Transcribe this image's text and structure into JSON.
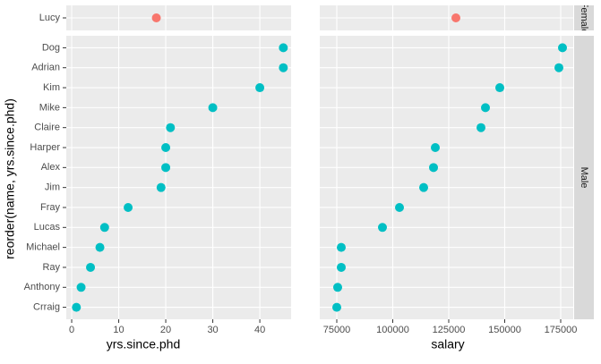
{
  "chart_data": {
    "type": "dot",
    "y_label": "reorder(name, yrs.since.phd)",
    "columns": [
      {
        "x_label": "yrs.since.phd",
        "xlim": [
          -1.15,
          46.65
        ],
        "xticks": [
          0,
          10,
          20,
          30,
          40
        ]
      },
      {
        "x_label": "salary",
        "xlim": [
          67400,
          180600
        ],
        "xticks": [
          75000,
          100000,
          125000,
          150000,
          175000
        ]
      }
    ],
    "rows": [
      {
        "strip": "Female",
        "color": "#F8766D",
        "categories": [
          "Lucy"
        ],
        "values": [
          [
            18
          ],
          [
            128200
          ]
        ]
      },
      {
        "strip": "Male",
        "color": "#00BFC4",
        "categories": [
          "Dog",
          "Adrian",
          "Kim",
          "Mike",
          "Claire",
          "Harper",
          "Alex",
          "Jim",
          "Fray",
          "Lucas",
          "Michael",
          "Ray",
          "Anthony",
          "Crraig"
        ],
        "values": [
          [
            45,
            45,
            40,
            30,
            21,
            20,
            20,
            19,
            12,
            7,
            6,
            4,
            2,
            1
          ],
          [
            175800,
            174200,
            147800,
            141400,
            139400,
            119000,
            118200,
            113800,
            103000,
            95400,
            77000,
            77000,
            75400,
            75000
          ]
        ]
      }
    ],
    "grid": true
  }
}
